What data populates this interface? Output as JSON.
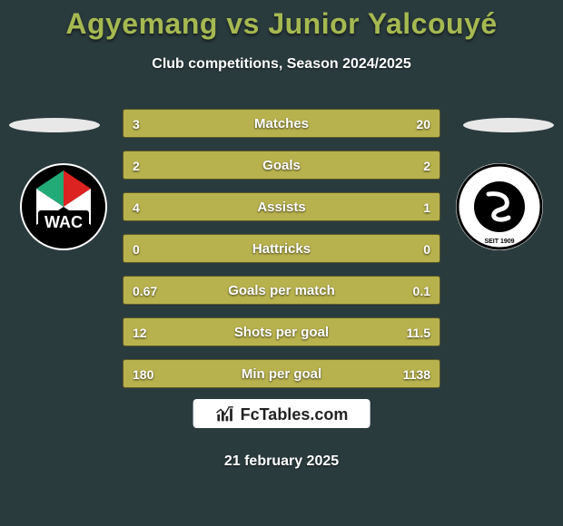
{
  "colors": {
    "background": "#2a3b3e",
    "title": "#a6b951",
    "text": "#ffffff",
    "bar_track": "#7a7730",
    "bar_fill": "#b8b24e",
    "avatar_slot": "#e8e8e8",
    "brand_box": "#ffffff",
    "brand_text": "#222222"
  },
  "typography": {
    "title_size": 32,
    "subtitle_size": 16,
    "bar_label_size": 15,
    "bar_value_size": 14,
    "date_size": 16
  },
  "header": {
    "title_left": "Agyemang",
    "title_vs": "vs",
    "title_right": "Junior Yalcouyé",
    "subtitle": "Club competitions, Season 2024/2025"
  },
  "teams": {
    "left": {
      "name": "WAC",
      "badge": "wac"
    },
    "right": {
      "name": "SK Sturm Graz",
      "badge": "sturm"
    }
  },
  "bars": [
    {
      "label": "Matches",
      "left": "3",
      "right": "20",
      "left_pct": 13,
      "right_pct": 87
    },
    {
      "label": "Goals",
      "left": "2",
      "right": "2",
      "left_pct": 50,
      "right_pct": 50
    },
    {
      "label": "Assists",
      "left": "4",
      "right": "1",
      "left_pct": 80,
      "right_pct": 20
    },
    {
      "label": "Hattricks",
      "left": "0",
      "right": "0",
      "left_pct": 50,
      "right_pct": 50
    },
    {
      "label": "Goals per match",
      "left": "0.67",
      "right": "0.1",
      "left_pct": 87,
      "right_pct": 13
    },
    {
      "label": "Shots per goal",
      "left": "12",
      "right": "11.5",
      "left_pct": 51,
      "right_pct": 49
    },
    {
      "label": "Min per goal",
      "left": "180",
      "right": "1138",
      "left_pct": 14,
      "right_pct": 86
    }
  ],
  "brand": {
    "label": "FcTables.com"
  },
  "date": "21 february 2025"
}
